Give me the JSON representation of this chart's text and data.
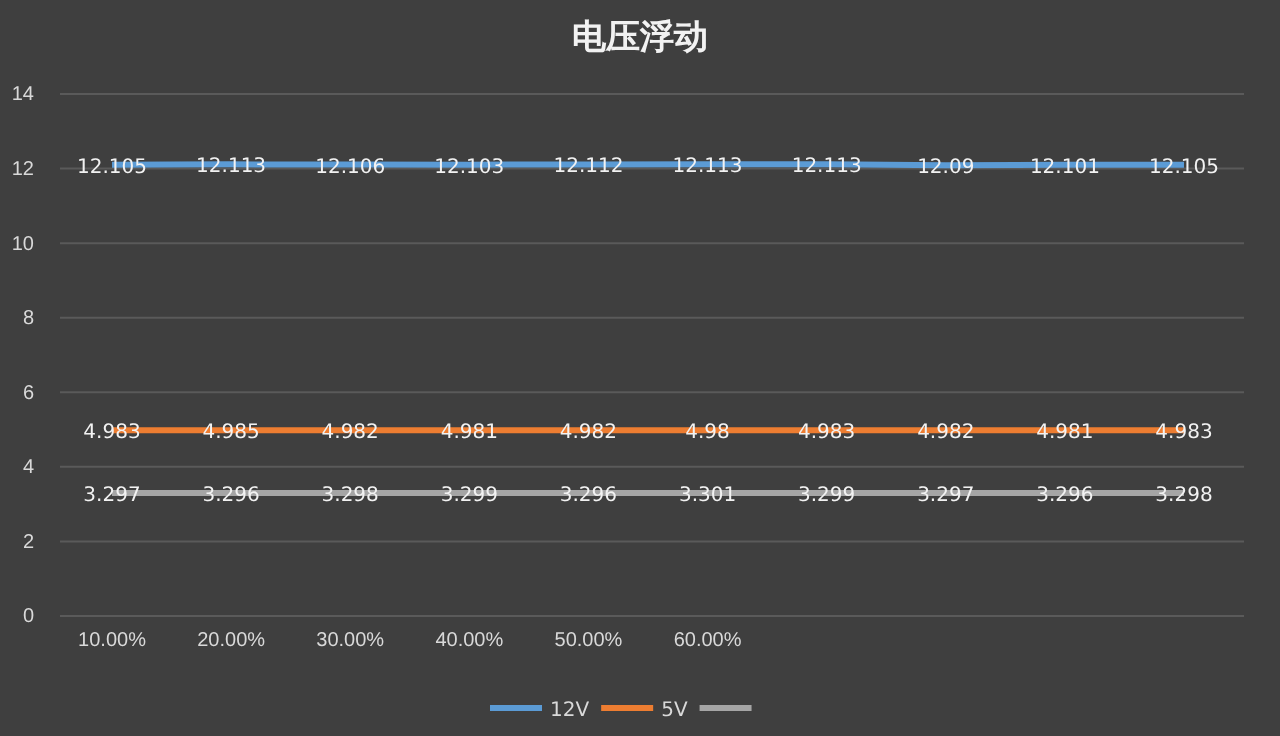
{
  "chart_data": {
    "type": "line",
    "title": "电压浮动",
    "categories": [
      "10.00%",
      "20.00%",
      "30.00%",
      "40.00%",
      "50.00%",
      "60.00%",
      null,
      null,
      null,
      null
    ],
    "series": [
      {
        "name": "12V",
        "color": "#5b9bd5",
        "values": [
          12.105,
          12.113,
          12.106,
          12.103,
          12.112,
          12.113,
          12.113,
          12.09,
          12.101,
          12.105
        ]
      },
      {
        "name": "5V",
        "color": "#ed7d31",
        "values": [
          4.983,
          4.985,
          4.982,
          4.981,
          4.982,
          4.98,
          4.983,
          4.982,
          4.981,
          4.983
        ]
      },
      {
        "color": "#a5a5a5",
        "values": [
          3.297,
          3.296,
          3.298,
          3.299,
          3.296,
          3.301,
          3.299,
          3.297,
          3.296,
          3.298
        ]
      }
    ],
    "ylim": [
      0,
      14
    ],
    "yticks": [
      0,
      2,
      4,
      6,
      8,
      10,
      12,
      14
    ],
    "grid": "y",
    "legend": "bottom",
    "data_labels": true,
    "marker": "none",
    "line_style": "solid"
  }
}
